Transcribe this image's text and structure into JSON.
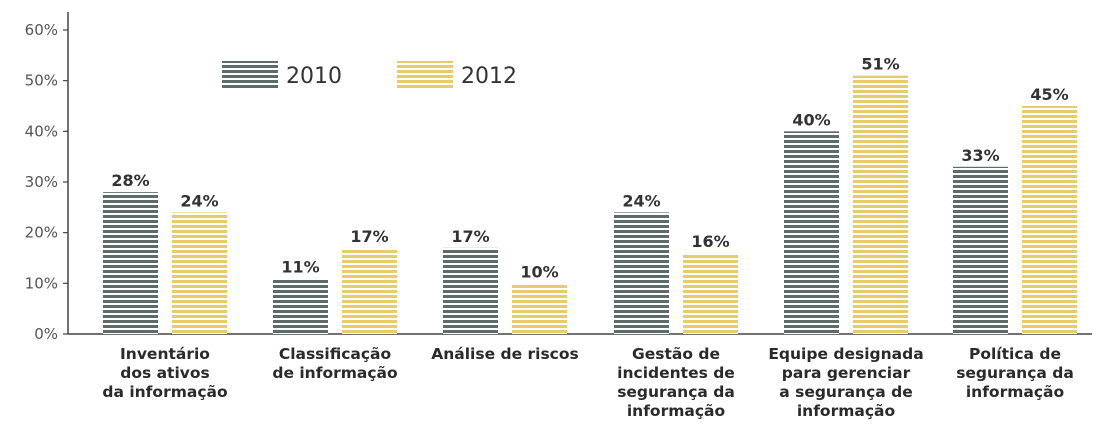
{
  "chart_data": {
    "type": "bar",
    "categories": [
      [
        "Inventário",
        "dos ativos",
        "da informação"
      ],
      [
        "Classificação",
        "de informação"
      ],
      [
        "Análise de riscos"
      ],
      [
        "Gestão de",
        "incidentes de",
        "segurança da",
        "informação"
      ],
      [
        "Equipe designada",
        "para gerenciar",
        "a segurança de",
        "informação"
      ],
      [
        "Política de",
        "segurança da",
        "informação"
      ]
    ],
    "series": [
      {
        "name": "2010",
        "values": [
          28,
          11,
          17,
          24,
          40,
          33
        ],
        "labels": [
          "28%",
          "11%",
          "17%",
          "24%",
          "40%",
          "33%"
        ],
        "color": "#5e6b6b"
      },
      {
        "name": "2012",
        "values": [
          24,
          17,
          10,
          16,
          51,
          45
        ],
        "labels": [
          "24%",
          "17%",
          "10%",
          "16%",
          "51%",
          "45%"
        ],
        "color": "#e8cc6a"
      }
    ],
    "yticks": [
      "0%",
      "10%",
      "20%",
      "30%",
      "40%",
      "50%",
      "60%"
    ],
    "ylim": [
      0,
      60
    ],
    "legend": "top-left",
    "grid": false
  }
}
